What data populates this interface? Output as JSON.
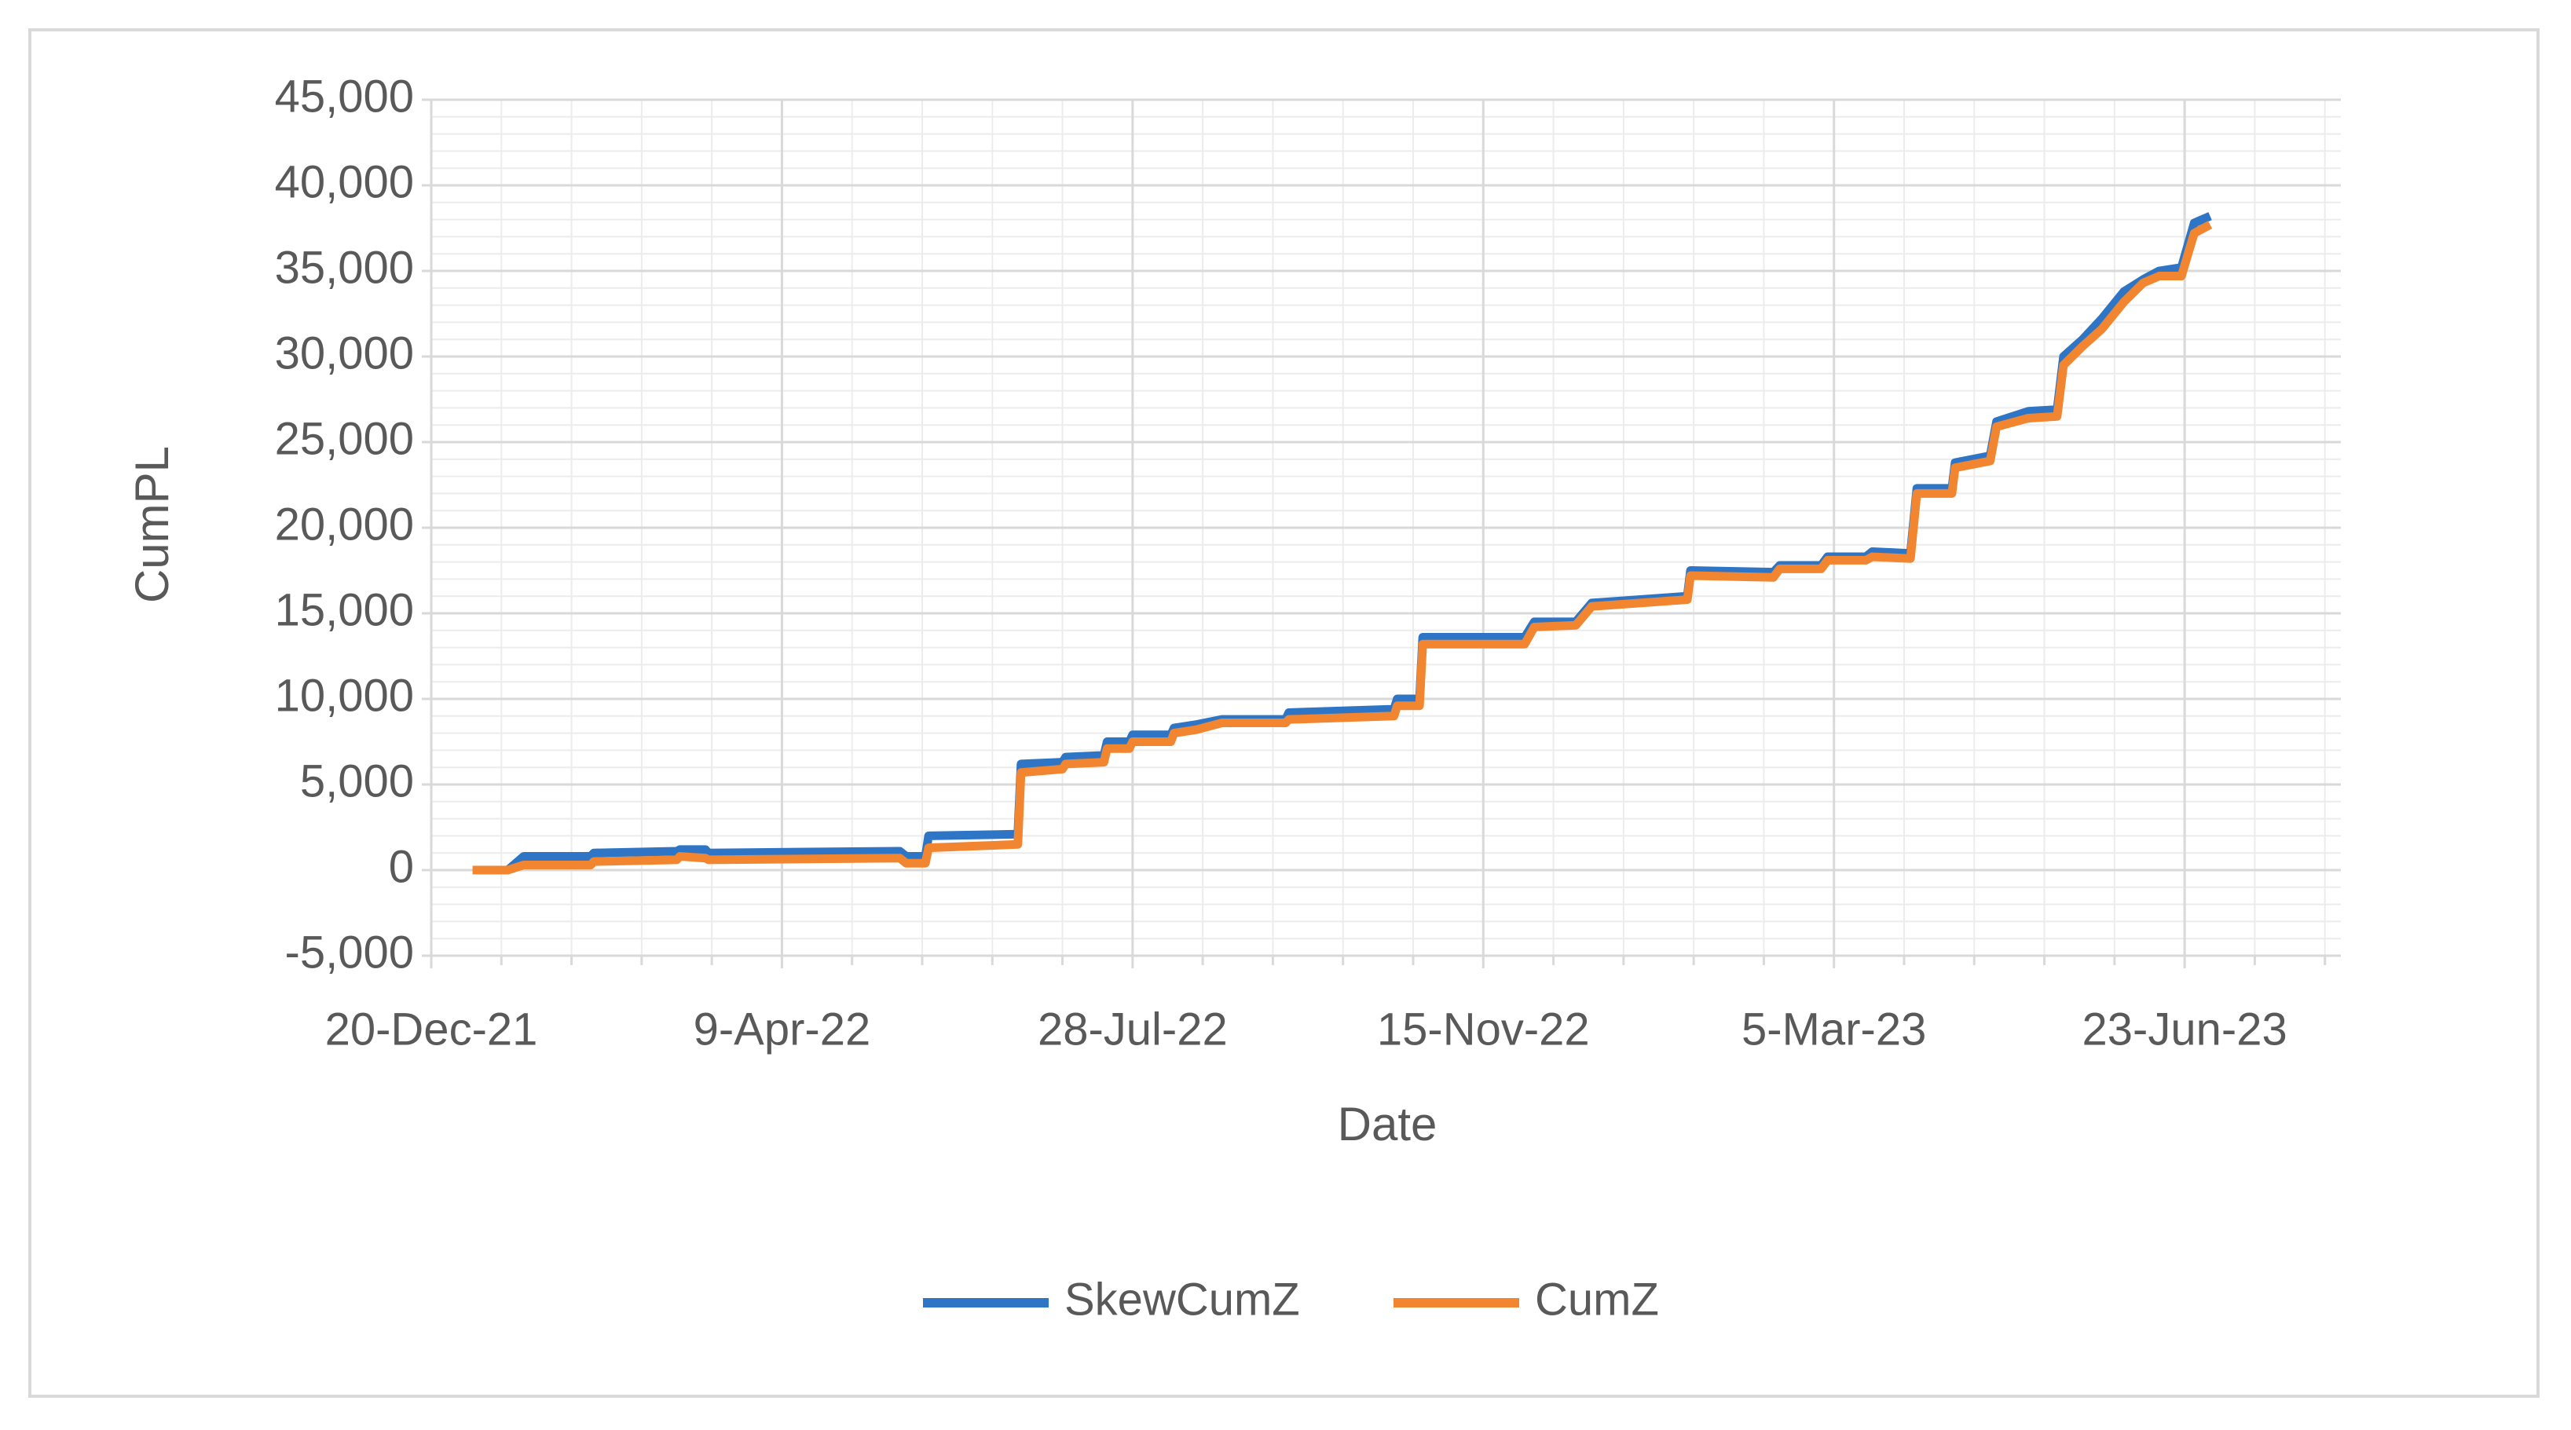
{
  "chart_data": {
    "type": "line",
    "x_label": "Date",
    "y_label": "CumPL",
    "xlim": [
      "2021-12-20",
      "2023-08-11"
    ],
    "xticks": [
      {
        "value": "2021-12-20",
        "label": "20-Dec-21"
      },
      {
        "value": "2022-04-09",
        "label": "9-Apr-22"
      },
      {
        "value": "2022-07-28",
        "label": "28-Jul-22"
      },
      {
        "value": "2022-11-15",
        "label": "15-Nov-22"
      },
      {
        "value": "2023-03-05",
        "label": "5-Mar-23"
      },
      {
        "value": "2023-06-23",
        "label": "23-Jun-23"
      }
    ],
    "ylim": [
      -5000,
      45000
    ],
    "yticks": [
      {
        "value": -5000,
        "label": "-5,000"
      },
      0,
      {
        "value": 5000,
        "label": "5,000"
      },
      {
        "value": 10000,
        "label": "10,000"
      },
      {
        "value": 15000,
        "label": "15,000"
      },
      {
        "value": 20000,
        "label": "20,000"
      },
      {
        "value": 25000,
        "label": "25,000"
      },
      {
        "value": 30000,
        "label": "30,000"
      },
      {
        "value": 35000,
        "label": "35,000"
      },
      {
        "value": 40000,
        "label": "40,000"
      },
      {
        "value": 45000,
        "label": "45,000"
      }
    ],
    "grid": true,
    "minor_grid": true,
    "legend": "bottom",
    "x": [
      "2022-01-02",
      "2022-01-13",
      "2022-01-18",
      "2022-02-08",
      "2022-02-09",
      "2022-03-07",
      "2022-03-08",
      "2022-03-16",
      "2022-03-17",
      "2022-05-16",
      "2022-05-18",
      "2022-05-24",
      "2022-05-25",
      "2022-06-22",
      "2022-06-23",
      "2022-07-06",
      "2022-07-07",
      "2022-07-19",
      "2022-07-20",
      "2022-07-27",
      "2022-07-28",
      "2022-08-09",
      "2022-08-10",
      "2022-08-17",
      "2022-08-25",
      "2022-09-14",
      "2022-09-15",
      "2022-10-18",
      "2022-10-19",
      "2022-10-26",
      "2022-10-27",
      "2022-11-28",
      "2022-12-01",
      "2022-12-14",
      "2022-12-19",
      "2023-01-18",
      "2023-01-19",
      "2023-02-14",
      "2023-02-16",
      "2023-03-01",
      "2023-03-03",
      "2023-03-15",
      "2023-03-17",
      "2023-03-29",
      "2023-03-31",
      "2023-04-11",
      "2023-04-12",
      "2023-04-23",
      "2023-04-25",
      "2023-05-05",
      "2023-05-14",
      "2023-05-16",
      "2023-05-22",
      "2023-05-28",
      "2023-06-04",
      "2023-06-10",
      "2023-06-15",
      "2023-06-22",
      "2023-06-26",
      "2023-07-01"
    ],
    "series": [
      {
        "name": "SkewCumZ",
        "color": "#2e75c6",
        "values": [
          0,
          0,
          800,
          800,
          1000,
          1100,
          1200,
          1200,
          1000,
          1100,
          800,
          800,
          2000,
          2100,
          6200,
          6300,
          6600,
          6700,
          7500,
          7500,
          7900,
          7900,
          8300,
          8500,
          8800,
          8800,
          9200,
          9400,
          10000,
          10000,
          13600,
          13600,
          14500,
          14500,
          15600,
          16000,
          17500,
          17400,
          17800,
          17800,
          18300,
          18300,
          18600,
          18500,
          22300,
          22300,
          23800,
          24200,
          26200,
          26800,
          26900,
          30000,
          31000,
          32200,
          33800,
          34500,
          35000,
          35200,
          37800,
          38200
        ]
      },
      {
        "name": "CumZ",
        "color": "#f28530",
        "values": [
          0,
          0,
          300,
          300,
          500,
          600,
          800,
          700,
          600,
          700,
          400,
          400,
          1300,
          1500,
          5700,
          5900,
          6200,
          6300,
          7100,
          7100,
          7500,
          7500,
          8000,
          8200,
          8600,
          8600,
          8800,
          9000,
          9600,
          9600,
          13200,
          13200,
          14200,
          14300,
          15400,
          15800,
          17200,
          17100,
          17600,
          17600,
          18100,
          18100,
          18300,
          18200,
          22000,
          22000,
          23500,
          23900,
          25900,
          26400,
          26500,
          29500,
          30600,
          31600,
          33200,
          34300,
          34700,
          34700,
          37200,
          37700
        ]
      }
    ]
  }
}
